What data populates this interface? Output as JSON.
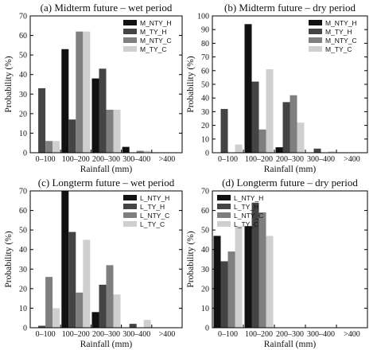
{
  "chart_data": [
    {
      "type": "bar",
      "title": "(a) Midterm future – wet period",
      "xlabel": "Rainfall (mm)",
      "ylabel": "Probability (%)",
      "ylim": [
        0,
        70
      ],
      "yticks": [
        0,
        10,
        20,
        30,
        40,
        50,
        60,
        70
      ],
      "categories": [
        "0–100",
        "100–200",
        "200–300",
        "300–400",
        ">400"
      ],
      "legend_position": "top-right",
      "series": [
        {
          "name": "M_NTY_H",
          "color": "#111111",
          "values": [
            0,
            53,
            38,
            3,
            0
          ]
        },
        {
          "name": "M_TY_H",
          "color": "#444444",
          "values": [
            33,
            17,
            43,
            0,
            0
          ]
        },
        {
          "name": "M_NTY_C",
          "color": "#7f7f7f",
          "values": [
            6,
            62,
            22,
            1,
            0
          ]
        },
        {
          "name": "M_TY_C",
          "color": "#cfcfcf",
          "values": [
            6,
            62,
            22,
            1,
            0
          ]
        }
      ]
    },
    {
      "type": "bar",
      "title": "(b) Midterm future – dry period",
      "xlabel": "Rainfall (mm)",
      "ylabel": "Probability (%)",
      "ylim": [
        0,
        100
      ],
      "yticks": [
        0,
        10,
        20,
        30,
        40,
        50,
        60,
        70,
        80,
        90,
        100
      ],
      "categories": [
        "0–100",
        "100–200",
        "200–300",
        "300–400",
        ">400"
      ],
      "legend_position": "top-right",
      "series": [
        {
          "name": "M_NTY_H",
          "color": "#111111",
          "values": [
            0,
            94,
            4,
            0,
            0
          ]
        },
        {
          "name": "M_TY_H",
          "color": "#444444",
          "values": [
            32,
            52,
            37,
            3,
            0
          ]
        },
        {
          "name": "M_NTY_C",
          "color": "#7f7f7f",
          "values": [
            0,
            17,
            42,
            0,
            0
          ]
        },
        {
          "name": "M_TY_C",
          "color": "#cfcfcf",
          "values": [
            6,
            61,
            22,
            1,
            0
          ]
        }
      ]
    },
    {
      "type": "bar",
      "title": "(c) Longterm future – wet period",
      "xlabel": "Rainfall (mm)",
      "ylabel": "Probability (%)",
      "ylim": [
        0,
        70
      ],
      "yticks": [
        0,
        10,
        20,
        30,
        40,
        50,
        60,
        70
      ],
      "categories": [
        "0–100",
        "100–200",
        "200–300",
        "300–400",
        ">400"
      ],
      "legend_position": "top-right",
      "series": [
        {
          "name": "L_NTY_H",
          "color": "#111111",
          "values": [
            0,
            70,
            8,
            0,
            0
          ]
        },
        {
          "name": "L_TY_H",
          "color": "#444444",
          "values": [
            1,
            49,
            22,
            2,
            0
          ]
        },
        {
          "name": "L_NTY_C",
          "color": "#7f7f7f",
          "values": [
            26,
            18,
            32,
            0,
            0
          ]
        },
        {
          "name": "L_TY_C",
          "color": "#cfcfcf",
          "values": [
            10,
            45,
            17,
            4,
            0
          ]
        }
      ]
    },
    {
      "type": "bar",
      "title": "(d) Longterm future – dry period",
      "xlabel": "Rainfall (mm)",
      "ylabel": "Probability (%)",
      "ylim": [
        0,
        70
      ],
      "yticks": [
        0,
        10,
        20,
        30,
        40,
        50,
        60,
        70
      ],
      "categories": [
        "0–100",
        "100–200",
        "200–300",
        "300–400",
        ">400"
      ],
      "legend_position": "top-left",
      "series": [
        {
          "name": "L_NTY_H",
          "color": "#111111",
          "values": [
            47,
            52,
            0,
            0,
            0
          ]
        },
        {
          "name": "L_TY_H",
          "color": "#444444",
          "values": [
            34,
            64,
            0,
            0,
            0
          ]
        },
        {
          "name": "L_NTY_C",
          "color": "#7f7f7f",
          "values": [
            39,
            59,
            0,
            0,
            0
          ]
        },
        {
          "name": "L_TY_C",
          "color": "#cfcfcf",
          "values": [
            52,
            47,
            0,
            0,
            0
          ]
        }
      ]
    }
  ]
}
